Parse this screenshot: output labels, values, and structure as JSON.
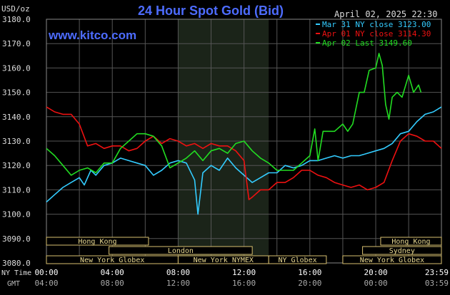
{
  "chart_data": {
    "type": "line",
    "title": "24 Hour Spot Gold (Bid)",
    "unit_label": "USD/oz",
    "date_label": "April 02, 2025 22:30",
    "watermark": "www.kitco.com",
    "ylim": [
      3080,
      3180
    ],
    "y_ticks": [
      "3180.0",
      "3170.0",
      "3160.0",
      "3150.0",
      "3140.0",
      "3130.0",
      "3120.0",
      "3110.0",
      "3100.0",
      "3090.0",
      "3080.0"
    ],
    "x_axis": {
      "row1_label": "NY Time",
      "row2_label": "GMT",
      "ny_ticks": [
        "00:00",
        "04:00",
        "08:00",
        "12:00",
        "16:00",
        "20:00",
        "23:59"
      ],
      "gmt_ticks": [
        "04:00",
        "08:00",
        "12:00",
        "16:00",
        "20:00",
        "00:00",
        "03:59"
      ]
    },
    "grid": true,
    "legend_position": "top-right",
    "sessions": [
      {
        "label": "Hong Kong",
        "start": 0,
        "end": 6.2,
        "row": 0
      },
      {
        "label": "London",
        "start": 3.8,
        "end": 12.5,
        "row": 1
      },
      {
        "label": "New York Globex",
        "start": 0,
        "end": 8.0,
        "row": 2
      },
      {
        "label": "New York NYMEX",
        "start": 8.0,
        "end": 13.5,
        "row": 2
      },
      {
        "label": "NY Globex",
        "start": 13.5,
        "end": 17.0,
        "row": 2
      },
      {
        "label": "Hong Kong",
        "start": 20.3,
        "end": 23.99,
        "row": 0
      },
      {
        "label": "Sydney",
        "start": 19.2,
        "end": 23.99,
        "row": 1
      },
      {
        "label": "New York Globex",
        "start": 18.0,
        "end": 23.99,
        "row": 2
      }
    ],
    "shaded_region": {
      "start": 8.0,
      "end": 13.5
    },
    "series": [
      {
        "name": "Mar 31 NY close 3123.00",
        "color": "#33ccff",
        "points": [
          [
            0,
            3105
          ],
          [
            0.5,
            3108
          ],
          [
            1,
            3111
          ],
          [
            1.5,
            3113
          ],
          [
            2,
            3115
          ],
          [
            2.3,
            3112
          ],
          [
            2.7,
            3118
          ],
          [
            3,
            3116
          ],
          [
            3.5,
            3120
          ],
          [
            4,
            3121
          ],
          [
            4.5,
            3123
          ],
          [
            5,
            3122
          ],
          [
            5.5,
            3121
          ],
          [
            6,
            3120
          ],
          [
            6.5,
            3116
          ],
          [
            7,
            3118
          ],
          [
            7.5,
            3121
          ],
          [
            8,
            3122
          ],
          [
            8.5,
            3121
          ],
          [
            9,
            3114
          ],
          [
            9.2,
            3100
          ],
          [
            9.5,
            3117
          ],
          [
            10,
            3120
          ],
          [
            10.5,
            3118
          ],
          [
            11,
            3123
          ],
          [
            11.5,
            3119
          ],
          [
            12,
            3116
          ],
          [
            12.5,
            3113
          ],
          [
            13,
            3115
          ],
          [
            13.5,
            3117
          ],
          [
            14,
            3117
          ],
          [
            14.5,
            3120
          ],
          [
            15,
            3119
          ],
          [
            15.5,
            3120
          ],
          [
            16,
            3122
          ],
          [
            16.5,
            3122
          ],
          [
            17,
            3123
          ],
          [
            17.5,
            3124
          ],
          [
            18,
            3123
          ],
          [
            18.5,
            3124
          ],
          [
            19,
            3124
          ],
          [
            19.5,
            3125
          ],
          [
            20,
            3126
          ],
          [
            20.5,
            3127
          ],
          [
            21,
            3129
          ],
          [
            21.5,
            3133
          ],
          [
            22,
            3134
          ],
          [
            22.5,
            3138
          ],
          [
            23,
            3141
          ],
          [
            23.5,
            3142
          ],
          [
            23.99,
            3144
          ]
        ]
      },
      {
        "name": "Apr 01 NY close 3114.30",
        "color": "#ee1111",
        "points": [
          [
            0,
            3144
          ],
          [
            0.5,
            3142
          ],
          [
            1,
            3141
          ],
          [
            1.5,
            3141
          ],
          [
            2,
            3137
          ],
          [
            2.5,
            3128
          ],
          [
            3,
            3129
          ],
          [
            3.5,
            3127
          ],
          [
            4,
            3128
          ],
          [
            4.5,
            3128
          ],
          [
            5,
            3126
          ],
          [
            5.5,
            3127
          ],
          [
            6,
            3130
          ],
          [
            6.5,
            3132
          ],
          [
            7,
            3129
          ],
          [
            7.5,
            3131
          ],
          [
            8,
            3130
          ],
          [
            8.5,
            3128
          ],
          [
            9,
            3129
          ],
          [
            9.5,
            3127
          ],
          [
            10,
            3129
          ],
          [
            10.5,
            3128
          ],
          [
            11,
            3128
          ],
          [
            11.5,
            3126
          ],
          [
            12,
            3122
          ],
          [
            12.3,
            3106
          ],
          [
            12.5,
            3107
          ],
          [
            13,
            3110
          ],
          [
            13.5,
            3110
          ],
          [
            14,
            3113
          ],
          [
            14.5,
            3113
          ],
          [
            15,
            3115
          ],
          [
            15.5,
            3118
          ],
          [
            16,
            3118
          ],
          [
            16.5,
            3116
          ],
          [
            17,
            3115
          ],
          [
            17.5,
            3113
          ],
          [
            18,
            3112
          ],
          [
            18.5,
            3111
          ],
          [
            19,
            3112
          ],
          [
            19.5,
            3110
          ],
          [
            20,
            3111
          ],
          [
            20.5,
            3113
          ],
          [
            21,
            3122
          ],
          [
            21.5,
            3130
          ],
          [
            22,
            3133
          ],
          [
            22.5,
            3132
          ],
          [
            23,
            3130
          ],
          [
            23.5,
            3130
          ],
          [
            23.99,
            3127
          ]
        ]
      },
      {
        "name": "Apr 02 Last 3149.60",
        "color": "#22dd22",
        "points": [
          [
            0,
            3127
          ],
          [
            0.5,
            3124
          ],
          [
            1,
            3120
          ],
          [
            1.5,
            3116
          ],
          [
            2,
            3118
          ],
          [
            2.5,
            3119
          ],
          [
            3,
            3117
          ],
          [
            3.5,
            3121
          ],
          [
            4,
            3121
          ],
          [
            4.5,
            3127
          ],
          [
            5,
            3130
          ],
          [
            5.5,
            3133
          ],
          [
            6,
            3133
          ],
          [
            6.5,
            3132
          ],
          [
            7,
            3128
          ],
          [
            7.5,
            3119
          ],
          [
            8,
            3121
          ],
          [
            8.5,
            3123
          ],
          [
            9,
            3126
          ],
          [
            9.5,
            3122
          ],
          [
            10,
            3126
          ],
          [
            10.5,
            3127
          ],
          [
            11,
            3125
          ],
          [
            11.5,
            3129
          ],
          [
            12,
            3130
          ],
          [
            12.5,
            3126
          ],
          [
            13,
            3123
          ],
          [
            13.5,
            3121
          ],
          [
            14,
            3118
          ],
          [
            14.5,
            3118
          ],
          [
            15,
            3118
          ],
          [
            15.5,
            3121
          ],
          [
            16,
            3124
          ],
          [
            16.3,
            3135
          ],
          [
            16.5,
            3122
          ],
          [
            16.8,
            3134
          ],
          [
            17,
            3134
          ],
          [
            17.5,
            3134
          ],
          [
            18,
            3137
          ],
          [
            18.3,
            3134
          ],
          [
            18.6,
            3137
          ],
          [
            19,
            3150
          ],
          [
            19.3,
            3150
          ],
          [
            19.6,
            3159
          ],
          [
            20,
            3160
          ],
          [
            20.2,
            3166
          ],
          [
            20.4,
            3161
          ],
          [
            20.6,
            3145
          ],
          [
            20.8,
            3139
          ],
          [
            21,
            3148
          ],
          [
            21.3,
            3150
          ],
          [
            21.6,
            3148
          ],
          [
            22,
            3157
          ],
          [
            22.3,
            3150
          ],
          [
            22.6,
            3153
          ],
          [
            22.75,
            3150
          ]
        ]
      }
    ]
  }
}
